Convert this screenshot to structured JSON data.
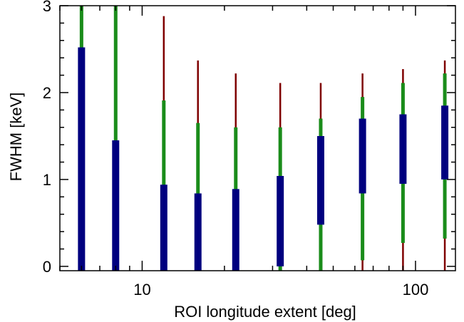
{
  "chart_data": {
    "type": "errorbar",
    "xlabel": "ROI longitude extent [deg]",
    "ylabel": "FWHM [keV]",
    "xscale": "log",
    "xlim": [
      5,
      140
    ],
    "ylim": [
      -0.05,
      3.0
    ],
    "x_ticks": [
      {
        "value": 10,
        "label": "10"
      },
      {
        "value": 100,
        "label": "100"
      }
    ],
    "y_ticks": [
      {
        "value": 0,
        "label": "0"
      },
      {
        "value": 1,
        "label": "1"
      },
      {
        "value": 2,
        "label": "2"
      },
      {
        "value": 3,
        "label": "3"
      }
    ],
    "grid": false,
    "colors": {
      "inner": "#00007f",
      "middle": "#1a8c1a",
      "outer": "#7f0000"
    },
    "points": [
      {
        "x": 6,
        "inner": [
          -0.05,
          2.52
        ],
        "middle": [
          -0.05,
          3.0
        ],
        "outer": [
          -0.05,
          3.0
        ]
      },
      {
        "x": 8,
        "inner": [
          -0.05,
          1.45
        ],
        "middle": [
          -0.05,
          3.0
        ],
        "outer": [
          -0.05,
          3.0
        ]
      },
      {
        "x": 12,
        "inner": [
          -0.05,
          0.94
        ],
        "middle": [
          -0.05,
          1.91
        ],
        "outer": [
          -0.05,
          2.88
        ]
      },
      {
        "x": 16,
        "inner": [
          -0.05,
          0.84
        ],
        "middle": [
          -0.05,
          1.65
        ],
        "outer": [
          -0.05,
          2.37
        ]
      },
      {
        "x": 22,
        "inner": [
          -0.05,
          0.89
        ],
        "middle": [
          -0.05,
          1.6
        ],
        "outer": [
          -0.05,
          2.22
        ]
      },
      {
        "x": 32,
        "inner": [
          0.0,
          1.04
        ],
        "middle": [
          -0.05,
          1.6
        ],
        "outer": [
          -0.05,
          2.11
        ]
      },
      {
        "x": 45,
        "inner": [
          0.48,
          1.5
        ],
        "middle": [
          -0.05,
          1.7
        ],
        "outer": [
          -0.05,
          2.11
        ]
      },
      {
        "x": 64,
        "inner": [
          0.84,
          1.7
        ],
        "middle": [
          0.07,
          1.95
        ],
        "outer": [
          -0.05,
          2.22
        ]
      },
      {
        "x": 90,
        "inner": [
          0.95,
          1.75
        ],
        "middle": [
          0.27,
          2.11
        ],
        "outer": [
          -0.05,
          2.27
        ]
      },
      {
        "x": 128,
        "inner": [
          1.0,
          1.85
        ],
        "middle": [
          0.32,
          2.22
        ],
        "outer": [
          -0.05,
          2.37
        ]
      }
    ]
  }
}
